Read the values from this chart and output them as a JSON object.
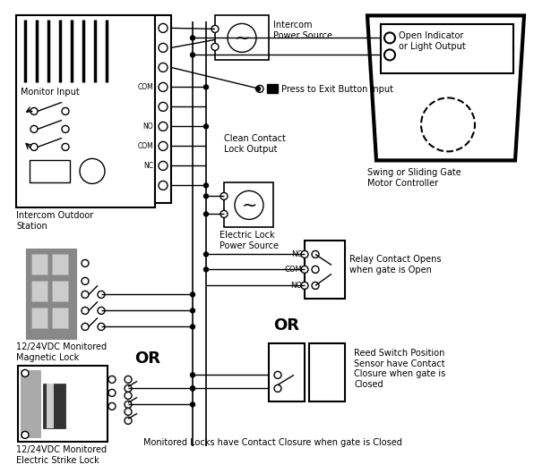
{
  "bg_color": "#ffffff",
  "labels": {
    "monitor_input": "Monitor Input",
    "intercom_outdoor": "Intercom Outdoor\nStation",
    "intercom_ps": "Intercom\nPower Source",
    "press_exit": "Press to Exit Button Input",
    "clean_contact": "Clean Contact\nLock Output",
    "electric_lock_ps": "Electric Lock\nPower Source",
    "magnetic_lock": "12/24VDC Monitored\nMagnetic Lock",
    "electric_strike": "12/24VDC Monitored\nElectric Strike Lock",
    "or1": "OR",
    "or2": "OR",
    "relay_contact": "Relay Contact Opens\nwhen gate is Open",
    "reed_switch": "Reed Switch Position\nSensor have Contact\nClosure when gate is\nClosed",
    "swing_gate": "Swing or Sliding Gate\nMotor Controller",
    "open_indicator": "Open Indicator\nor Light Output",
    "bottom_note": "Monitored Locks have Contact Closure when gate is Closed",
    "com_label": "COM",
    "no_label": "NO",
    "nc_label": "NC"
  }
}
